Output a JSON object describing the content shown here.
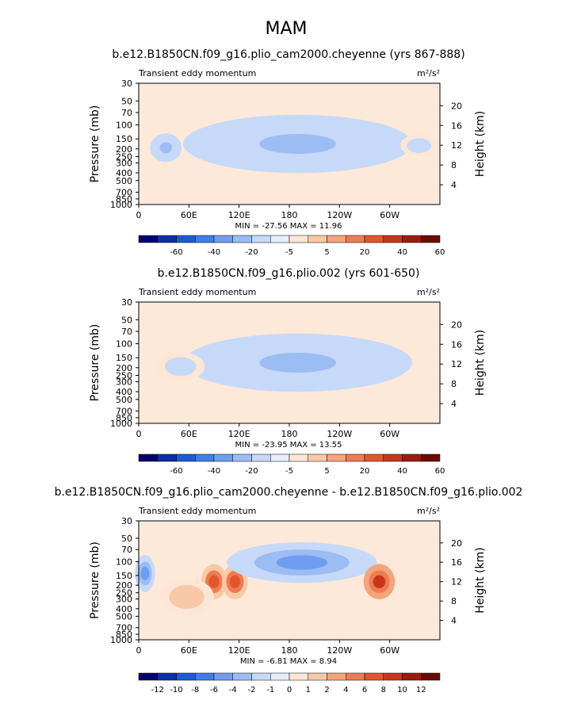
{
  "figure_title": "MAM",
  "chart_data": [
    {
      "type": "heatmap",
      "title": "b.e12.B1850CN.f09_g16.plio_cam2000.cheyenne (yrs 867-888)",
      "left_label": "Transient eddy momentum",
      "units_label": "m²/s²",
      "ylabel": "Pressure (mb)",
      "ylabel_right": "Height (km)",
      "x_ticks": [
        "0",
        "60E",
        "120E",
        "180",
        "120W",
        "60W"
      ],
      "x_tick_lon": [
        0,
        60,
        120,
        180,
        240,
        300
      ],
      "xlim": [
        0,
        360
      ],
      "y_ticks": [
        30,
        50,
        70,
        100,
        150,
        200,
        250,
        300,
        400,
        500,
        700,
        850,
        1000
      ],
      "y_scale": "log",
      "ylim": [
        1000,
        30
      ],
      "height_ticks": [
        4,
        8,
        12,
        16,
        20
      ],
      "min_max_text": "MIN = -27.56   MAX =  11.96",
      "min": -27.56,
      "max": 11.96,
      "colorbar_labels": [
        "-60",
        "-40",
        "-20",
        "-5",
        "5",
        "20",
        "40",
        "60"
      ],
      "colorbar_colors": [
        "#04006e",
        "#0a2fa8",
        "#1c5ad8",
        "#3f7ee8",
        "#6f9ef0",
        "#9cbcf4",
        "#c7d9f8",
        "#e6eefc",
        "#fde6d5",
        "#f9c8a8",
        "#f4a47d",
        "#ee7b53",
        "#e3552d",
        "#c8361a",
        "#9e1b0d",
        "#6b0a05"
      ],
      "features": [
        {
          "name": "subtropical-jet-core",
          "lon": [
            130,
            250
          ],
          "pressure": [
            130,
            250
          ],
          "value": -25
        },
        {
          "name": "jet-envelope",
          "lon": [
            90,
            290
          ],
          "pressure": [
            100,
            300
          ],
          "value": -12
        },
        {
          "name": "west-cell",
          "lon": [
            20,
            45
          ],
          "pressure": [
            150,
            250
          ],
          "value": -10
        },
        {
          "name": "east-cell",
          "lon": [
            320,
            350
          ],
          "pressure": [
            150,
            220
          ],
          "value": -8
        }
      ]
    },
    {
      "type": "heatmap",
      "title": "b.e12.B1850CN.f09_g16.plio.002 (yrs 601-650)",
      "left_label": "Transient eddy momentum",
      "units_label": "m²/s²",
      "ylabel": "Pressure (mb)",
      "ylabel_right": "Height (km)",
      "x_ticks": [
        "0",
        "60E",
        "120E",
        "180",
        "120W",
        "60W"
      ],
      "x_tick_lon": [
        0,
        60,
        120,
        180,
        240,
        300
      ],
      "xlim": [
        0,
        360
      ],
      "y_ticks": [
        30,
        50,
        70,
        100,
        150,
        200,
        250,
        300,
        400,
        500,
        700,
        850,
        1000
      ],
      "y_scale": "log",
      "ylim": [
        1000,
        30
      ],
      "height_ticks": [
        4,
        8,
        12,
        16,
        20
      ],
      "min_max_text": "MIN = -23.95   MAX =  13.55",
      "min": -23.95,
      "max": 13.55,
      "colorbar_labels": [
        "-60",
        "-40",
        "-20",
        "-5",
        "5",
        "20",
        "40",
        "60"
      ],
      "colorbar_colors": [
        "#04006e",
        "#0a2fa8",
        "#1c5ad8",
        "#3f7ee8",
        "#6f9ef0",
        "#9cbcf4",
        "#c7d9f8",
        "#e6eefc",
        "#fde6d5",
        "#f9c8a8",
        "#f4a47d",
        "#ee7b53",
        "#e3552d",
        "#c8361a",
        "#9e1b0d",
        "#6b0a05"
      ],
      "features": [
        {
          "name": "subtropical-jet-core",
          "lon": [
            175,
            250
          ],
          "pressure": [
            150,
            220
          ],
          "value": -22
        },
        {
          "name": "jet-envelope",
          "lon": [
            90,
            290
          ],
          "pressure": [
            100,
            300
          ],
          "value": -12
        },
        {
          "name": "west-cell",
          "lon": [
            30,
            70
          ],
          "pressure": [
            150,
            250
          ],
          "value": -8
        }
      ]
    },
    {
      "type": "heatmap",
      "title": "b.e12.B1850CN.f09_g16.plio_cam2000.cheyenne - b.e12.B1850CN.f09_g16.plio.002",
      "left_label": "Transient eddy momentum",
      "units_label": "m²/s²",
      "ylabel": "Pressure (mb)",
      "ylabel_right": "Height (km)",
      "x_ticks": [
        "0",
        "60E",
        "120E",
        "180",
        "120W",
        "60W"
      ],
      "x_tick_lon": [
        0,
        60,
        120,
        180,
        240,
        300
      ],
      "xlim": [
        0,
        360
      ],
      "y_ticks": [
        30,
        50,
        70,
        100,
        150,
        200,
        250,
        300,
        400,
        500,
        700,
        850,
        1000
      ],
      "y_scale": "log",
      "ylim": [
        1000,
        30
      ],
      "height_ticks": [
        4,
        8,
        12,
        16,
        20
      ],
      "min_max_text": "MIN =  -6.81   MAX =   8.94",
      "min": -6.81,
      "max": 8.94,
      "colorbar_labels": [
        "-12",
        "-10",
        "-8",
        "-6",
        "-4",
        "-2",
        "-1",
        "0",
        "1",
        "2",
        "4",
        "6",
        "8",
        "10",
        "12"
      ],
      "colorbar_colors": [
        "#04006e",
        "#0a2fa8",
        "#1c5ad8",
        "#3f7ee8",
        "#6f9ef0",
        "#9cbcf4",
        "#c7d9f8",
        "#e6eefc",
        "#fde6d5",
        "#f9c8a8",
        "#f4a47d",
        "#ee7b53",
        "#e3552d",
        "#c8361a",
        "#9e1b0d",
        "#6b0a05"
      ],
      "features": [
        {
          "name": "neg-cell-west",
          "lon": [
            0,
            15
          ],
          "pressure": [
            100,
            200
          ],
          "value": -5
        },
        {
          "name": "pos-cell-90E",
          "lon": [
            80,
            100
          ],
          "pressure": [
            130,
            250
          ],
          "value": 6
        },
        {
          "name": "pos-cell-110E",
          "lon": [
            105,
            125
          ],
          "pressure": [
            130,
            250
          ],
          "value": 6
        },
        {
          "name": "neg-band-upper",
          "lon": [
            130,
            260
          ],
          "pressure": [
            70,
            150
          ],
          "value": -5
        },
        {
          "name": "pos-cell-110W",
          "lon": [
            275,
            300
          ],
          "pressure": [
            130,
            250
          ],
          "value": 7
        },
        {
          "name": "pos-lower-west",
          "lon": [
            35,
            80
          ],
          "pressure": [
            200,
            400
          ],
          "value": 2
        }
      ]
    }
  ]
}
